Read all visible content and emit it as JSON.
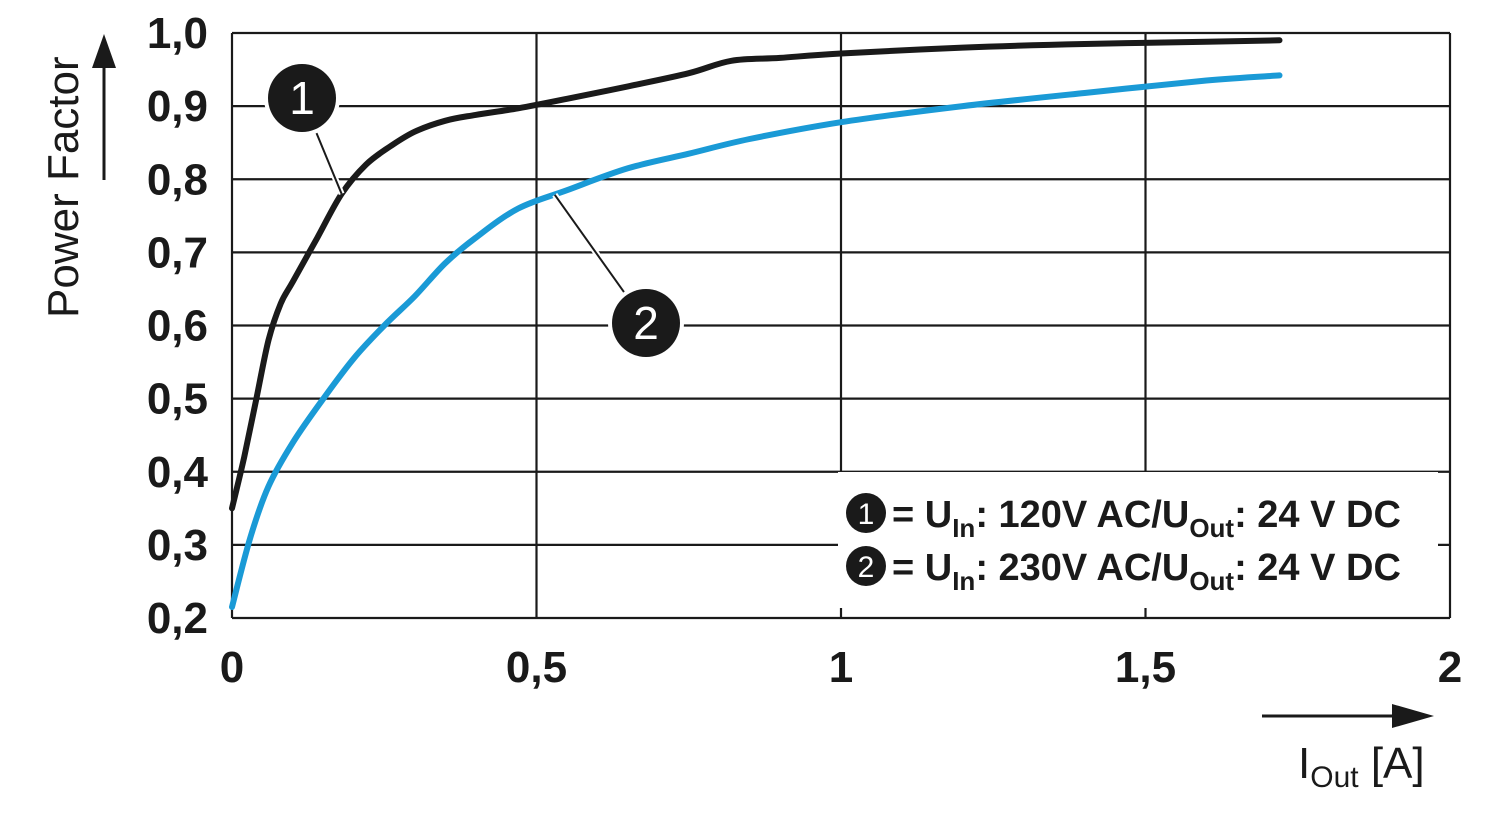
{
  "chart_data": {
    "type": "line",
    "xlabel": "I",
    "xlabel_sub": "Out",
    "xlabel_unit": " [A]",
    "ylabel": "Power Factor",
    "xlim": [
      0,
      2
    ],
    "ylim": [
      0.2,
      1.0
    ],
    "grid": true,
    "x_ticks": [
      "0",
      "0,5",
      "1",
      "1,5",
      "2"
    ],
    "y_ticks": [
      "0,2",
      "0,3",
      "0,4",
      "0,5",
      "0,6",
      "0,7",
      "0,8",
      "0,9",
      "1,0"
    ],
    "series": [
      {
        "marker": "1",
        "color": "#1a1a1a",
        "legend": {
          "pre": "= U",
          "sub1": "In",
          "mid": ": 120V AC/U",
          "sub2": "Out",
          "post": ": 24 V DC"
        },
        "points": [
          [
            0.0,
            0.35
          ],
          [
            0.02,
            0.42
          ],
          [
            0.04,
            0.5
          ],
          [
            0.06,
            0.58
          ],
          [
            0.08,
            0.63
          ],
          [
            0.1,
            0.66
          ],
          [
            0.14,
            0.72
          ],
          [
            0.18,
            0.78
          ],
          [
            0.22,
            0.82
          ],
          [
            0.26,
            0.845
          ],
          [
            0.3,
            0.865
          ],
          [
            0.35,
            0.88
          ],
          [
            0.4,
            0.888
          ],
          [
            0.47,
            0.897
          ],
          [
            0.55,
            0.91
          ],
          [
            0.65,
            0.927
          ],
          [
            0.75,
            0.945
          ],
          [
            0.82,
            0.962
          ],
          [
            0.9,
            0.966
          ],
          [
            1.0,
            0.972
          ],
          [
            1.2,
            0.98
          ],
          [
            1.4,
            0.985
          ],
          [
            1.6,
            0.988
          ],
          [
            1.72,
            0.99
          ]
        ]
      },
      {
        "marker": "2",
        "color": "#1a9ad6",
        "legend": {
          "pre": "= U",
          "sub1": "In",
          "mid": ": 230V AC/U",
          "sub2": "Out",
          "post": ": 24 V DC"
        },
        "points": [
          [
            0.0,
            0.215
          ],
          [
            0.03,
            0.31
          ],
          [
            0.06,
            0.38
          ],
          [
            0.1,
            0.44
          ],
          [
            0.15,
            0.5
          ],
          [
            0.2,
            0.555
          ],
          [
            0.25,
            0.6
          ],
          [
            0.3,
            0.64
          ],
          [
            0.35,
            0.685
          ],
          [
            0.4,
            0.72
          ],
          [
            0.47,
            0.76
          ],
          [
            0.55,
            0.785
          ],
          [
            0.65,
            0.815
          ],
          [
            0.75,
            0.835
          ],
          [
            0.85,
            0.855
          ],
          [
            1.0,
            0.878
          ],
          [
            1.2,
            0.9
          ],
          [
            1.4,
            0.918
          ],
          [
            1.6,
            0.935
          ],
          [
            1.72,
            0.942
          ]
        ]
      }
    ]
  }
}
